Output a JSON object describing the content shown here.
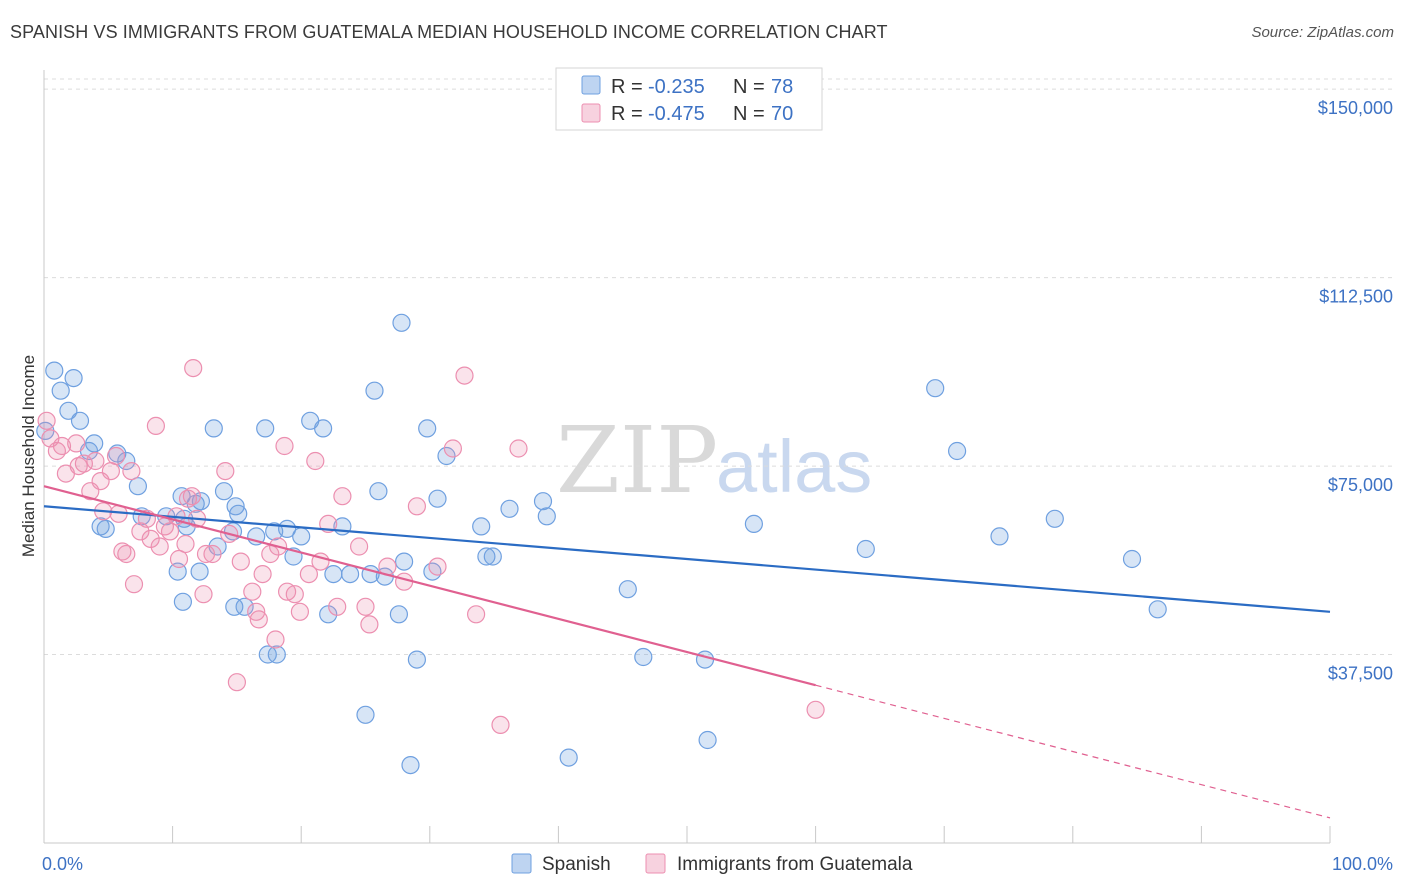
{
  "header": {
    "title": "SPANISH VS IMMIGRANTS FROM GUATEMALA MEDIAN HOUSEHOLD INCOME CORRELATION CHART",
    "source": "Source: ZipAtlas.com"
  },
  "watermark": {
    "zip": "ZIP",
    "atlas": "atlas"
  },
  "legend": {
    "r_label": "R =",
    "n_label": "N =",
    "entries": [
      {
        "r": "-0.235",
        "n": "78",
        "color": "#6fa0e0"
      },
      {
        "r": "-0.475",
        "n": "70",
        "color": "#ec8fb0"
      }
    ]
  },
  "bottom_legend": [
    {
      "label": "Spanish",
      "color": "#6fa0e0"
    },
    {
      "label": "Immigrants from Guatemala",
      "color": "#ec8fb0"
    }
  ],
  "chart_data": {
    "type": "scatter",
    "title": "SPANISH VS IMMIGRANTS FROM GUATEMALA MEDIAN HOUSEHOLD INCOME CORRELATION CHART",
    "xlabel": "",
    "ylabel": "Median Household Income",
    "xlim": [
      0,
      100
    ],
    "ylim": [
      0,
      155000
    ],
    "x_tick_labels": [
      "0.0%",
      "100.0%"
    ],
    "y_ticks": [
      37500,
      75000,
      112500,
      150000
    ],
    "y_tick_labels": [
      "$37,500",
      "$75,000",
      "$112,500",
      "$150,000"
    ],
    "grid": "horizontal dashed",
    "legend_position": "top-center",
    "series": [
      {
        "name": "Spanish",
        "color": "#6fa0e0",
        "line_color": "#2b6cc4",
        "trend": {
          "x": [
            0,
            100
          ],
          "y": [
            67000,
            46000
          ]
        },
        "points": [
          [
            0.1,
            82000
          ],
          [
            0.8,
            94000
          ],
          [
            1.3,
            90000
          ],
          [
            2.3,
            92500
          ],
          [
            1.9,
            86000
          ],
          [
            2.8,
            84000
          ],
          [
            3.9,
            79500
          ],
          [
            3.5,
            78000
          ],
          [
            5.7,
            77500
          ],
          [
            6.4,
            76000
          ],
          [
            7.3,
            71000
          ],
          [
            10.7,
            69000
          ],
          [
            11.8,
            67500
          ],
          [
            12.2,
            68000
          ],
          [
            14.0,
            70000
          ],
          [
            15.1,
            65500
          ],
          [
            9.5,
            65000
          ],
          [
            10.9,
            64500
          ],
          [
            4.4,
            63000
          ],
          [
            4.8,
            62500
          ],
          [
            11.1,
            63000
          ],
          [
            13.2,
            82500
          ],
          [
            14.9,
            67000
          ],
          [
            16.5,
            61000
          ],
          [
            17.9,
            62000
          ],
          [
            18.9,
            62500
          ],
          [
            20.0,
            61000
          ],
          [
            14.7,
            62000
          ],
          [
            17.2,
            82500
          ],
          [
            19.4,
            57000
          ],
          [
            20.7,
            84000
          ],
          [
            21.7,
            82500
          ],
          [
            23.2,
            63000
          ],
          [
            22.5,
            53500
          ],
          [
            23.8,
            53500
          ],
          [
            25.4,
            53500
          ],
          [
            26.5,
            53000
          ],
          [
            25.7,
            90000
          ],
          [
            26.0,
            70000
          ],
          [
            28.0,
            56000
          ],
          [
            27.6,
            45500
          ],
          [
            29.0,
            36500
          ],
          [
            27.8,
            103500
          ],
          [
            29.8,
            82500
          ],
          [
            31.3,
            77000
          ],
          [
            30.6,
            68500
          ],
          [
            34.0,
            63000
          ],
          [
            30.2,
            54000
          ],
          [
            34.4,
            57000
          ],
          [
            36.2,
            66500
          ],
          [
            38.8,
            68000
          ],
          [
            39.1,
            65000
          ],
          [
            10.4,
            54000
          ],
          [
            12.1,
            54000
          ],
          [
            10.8,
            48000
          ],
          [
            14.8,
            47000
          ],
          [
            15.6,
            47000
          ],
          [
            17.4,
            37500
          ],
          [
            18.1,
            37500
          ],
          [
            22.1,
            45500
          ],
          [
            25.0,
            25500
          ],
          [
            28.5,
            15500
          ],
          [
            34.9,
            57000
          ],
          [
            40.8,
            17000
          ],
          [
            45.4,
            50500
          ],
          [
            46.6,
            37000
          ],
          [
            51.4,
            36500
          ],
          [
            51.6,
            20500
          ],
          [
            55.2,
            63500
          ],
          [
            63.9,
            58500
          ],
          [
            69.3,
            90500
          ],
          [
            71.0,
            78000
          ],
          [
            74.3,
            61000
          ],
          [
            78.6,
            64500
          ],
          [
            84.6,
            56500
          ],
          [
            86.6,
            46500
          ],
          [
            7.6,
            65000
          ],
          [
            13.5,
            59000
          ]
        ]
      },
      {
        "name": "Immigrants from Guatemala",
        "color": "#ec8fb0",
        "line_color": "#e06090",
        "trend": {
          "x": [
            0,
            100
          ],
          "y": [
            71000,
            5000
          ],
          "solid_until_x": 60
        },
        "points": [
          [
            0.2,
            84000
          ],
          [
            0.5,
            80500
          ],
          [
            1.4,
            79000
          ],
          [
            2.5,
            79500
          ],
          [
            1.0,
            78000
          ],
          [
            1.7,
            73500
          ],
          [
            2.7,
            75000
          ],
          [
            3.1,
            75500
          ],
          [
            3.6,
            70000
          ],
          [
            4.0,
            76000
          ],
          [
            4.4,
            72000
          ],
          [
            5.2,
            74000
          ],
          [
            5.6,
            77000
          ],
          [
            6.8,
            74000
          ],
          [
            7.5,
            62000
          ],
          [
            8.0,
            64500
          ],
          [
            4.6,
            66000
          ],
          [
            5.8,
            65500
          ],
          [
            6.1,
            58000
          ],
          [
            6.4,
            57500
          ],
          [
            8.3,
            60500
          ],
          [
            9.0,
            59000
          ],
          [
            9.4,
            63000
          ],
          [
            9.8,
            62000
          ],
          [
            10.3,
            65000
          ],
          [
            11.2,
            68500
          ],
          [
            11.5,
            69000
          ],
          [
            11.9,
            64500
          ],
          [
            11.6,
            94500
          ],
          [
            8.7,
            83000
          ],
          [
            10.5,
            56500
          ],
          [
            11.0,
            59500
          ],
          [
            12.4,
            49500
          ],
          [
            12.6,
            57500
          ],
          [
            13.1,
            57500
          ],
          [
            14.1,
            74000
          ],
          [
            14.4,
            61500
          ],
          [
            15.3,
            56000
          ],
          [
            16.2,
            50000
          ],
          [
            16.5,
            46000
          ],
          [
            16.7,
            44500
          ],
          [
            17.0,
            53500
          ],
          [
            17.6,
            57500
          ],
          [
            18.2,
            59000
          ],
          [
            18.7,
            79000
          ],
          [
            18.9,
            50000
          ],
          [
            19.5,
            49500
          ],
          [
            19.9,
            46000
          ],
          [
            20.6,
            53500
          ],
          [
            21.1,
            76000
          ],
          [
            21.5,
            56000
          ],
          [
            22.1,
            63500
          ],
          [
            22.8,
            47000
          ],
          [
            23.2,
            69000
          ],
          [
            24.5,
            59000
          ],
          [
            25.0,
            47000
          ],
          [
            25.3,
            43500
          ],
          [
            26.7,
            55000
          ],
          [
            28.0,
            52000
          ],
          [
            29.0,
            67000
          ],
          [
            30.6,
            55000
          ],
          [
            31.8,
            78500
          ],
          [
            32.7,
            93000
          ],
          [
            33.6,
            45500
          ],
          [
            35.5,
            23500
          ],
          [
            36.9,
            78500
          ],
          [
            18.0,
            40500
          ],
          [
            15.0,
            32000
          ],
          [
            7.0,
            51500
          ],
          [
            60.0,
            26500
          ]
        ]
      }
    ]
  }
}
